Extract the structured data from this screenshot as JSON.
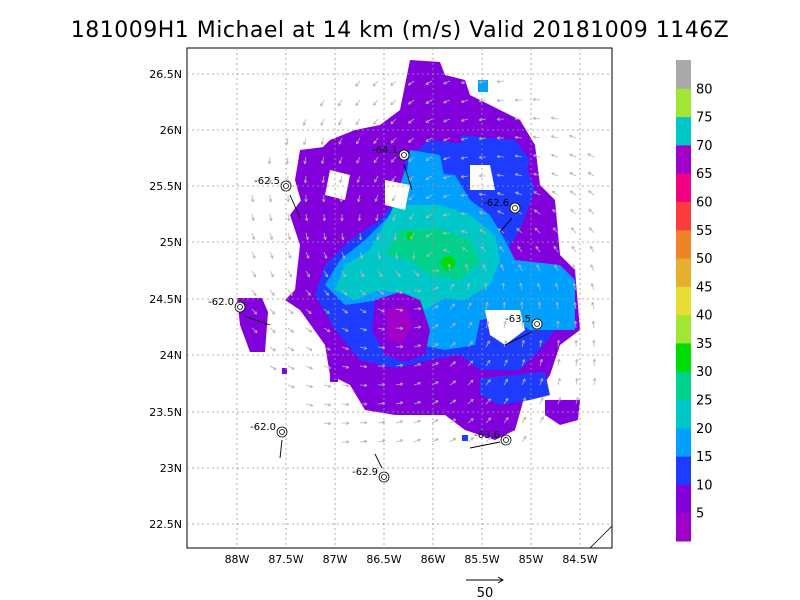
{
  "title": "181009H1 Michael at 14 km (m/s) Valid 20181009 1146Z",
  "lat_labels": [
    "26.5N",
    "26N",
    "25.5N",
    "25N",
    "24.5N",
    "24N",
    "23.5N",
    "23N",
    "22.5N"
  ],
  "lon_labels": [
    "88W",
    "87.5W",
    "87W",
    "86.5W",
    "86W",
    "85.5W",
    "85W",
    "84.5W"
  ],
  "colorbar": {
    "labels": [
      "5",
      "10",
      "15",
      "20",
      "25",
      "30",
      "35",
      "40",
      "45",
      "50",
      "55",
      "60",
      "65",
      "70",
      "75",
      "80"
    ],
    "colors": [
      "#a000c8",
      "#8200dc",
      "#1e3cff",
      "#00a0ff",
      "#00c8c8",
      "#00d28c",
      "#00dc00",
      "#a0e632",
      "#e6dc32",
      "#e6af2d",
      "#f08228",
      "#fa3c3c",
      "#f00082",
      "#a000c8",
      "#00c8c8",
      "#a0e632",
      "#aaaaaa"
    ]
  },
  "stations": [
    {
      "label": "-62.5"
    },
    {
      "label": "-64.1"
    },
    {
      "label": "-62.6"
    },
    {
      "label": "-62.0"
    },
    {
      "label": "-63.5"
    },
    {
      "label": "-62.0"
    },
    {
      "label": "-63.6"
    },
    {
      "label": "-62.9"
    }
  ],
  "reference_vector": {
    "label": "50"
  }
}
